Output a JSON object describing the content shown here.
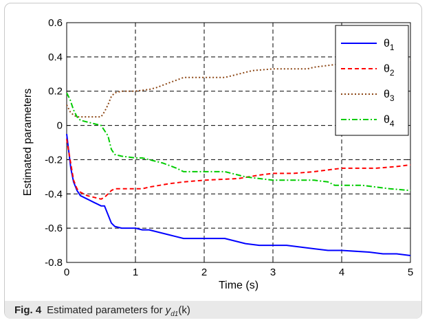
{
  "chart_data": {
    "type": "line",
    "xlabel": "Time (s)",
    "ylabel": "Estimated parameters",
    "xlim": [
      0,
      5
    ],
    "ylim": [
      -0.8,
      0.6
    ],
    "xticks": [
      0,
      1,
      2,
      3,
      4,
      5
    ],
    "yticks": [
      -0.8,
      -0.6,
      -0.4,
      -0.2,
      0,
      0.2,
      0.4,
      0.6
    ],
    "grid": "on",
    "legend_position": "top-right",
    "series": [
      {
        "name": "θ1",
        "color": "#0000ff",
        "style": "solid",
        "x": [
          0,
          0.03,
          0.06,
          0.1,
          0.15,
          0.2,
          0.3,
          0.4,
          0.45,
          0.5,
          0.55,
          0.6,
          0.65,
          0.7,
          0.8,
          1.0,
          1.1,
          1.2,
          1.3,
          1.5,
          1.7,
          1.9,
          2.1,
          2.3,
          2.5,
          2.6,
          2.8,
          3.2,
          3.4,
          3.6,
          3.8,
          4.0,
          4.4,
          4.6,
          4.8,
          5.0
        ],
        "y": [
          -0.05,
          -0.15,
          -0.25,
          -0.33,
          -0.38,
          -0.41,
          -0.43,
          -0.45,
          -0.46,
          -0.47,
          -0.47,
          -0.52,
          -0.57,
          -0.59,
          -0.6,
          -0.6,
          -0.61,
          -0.61,
          -0.62,
          -0.64,
          -0.66,
          -0.66,
          -0.66,
          -0.66,
          -0.68,
          -0.69,
          -0.7,
          -0.7,
          -0.71,
          -0.72,
          -0.73,
          -0.73,
          -0.74,
          -0.75,
          -0.75,
          -0.76
        ]
      },
      {
        "name": "θ2",
        "color": "#ff0000",
        "style": "dashed",
        "x": [
          0,
          0.05,
          0.1,
          0.15,
          0.2,
          0.3,
          0.4,
          0.5,
          0.55,
          0.6,
          0.65,
          0.7,
          1.0,
          1.1,
          1.2,
          1.5,
          1.7,
          2.0,
          2.5,
          2.8,
          3.0,
          3.3,
          3.6,
          3.8,
          4.0,
          4.5,
          4.8,
          5.0
        ],
        "y": [
          -0.08,
          -0.2,
          -0.32,
          -0.37,
          -0.39,
          -0.41,
          -0.42,
          -0.43,
          -0.42,
          -0.4,
          -0.38,
          -0.37,
          -0.37,
          -0.37,
          -0.36,
          -0.34,
          -0.33,
          -0.32,
          -0.31,
          -0.29,
          -0.28,
          -0.28,
          -0.27,
          -0.26,
          -0.25,
          -0.25,
          -0.24,
          -0.23
        ]
      },
      {
        "name": "θ3",
        "color": "#8b4513",
        "style": "dotted",
        "x": [
          0,
          0.05,
          0.1,
          0.15,
          0.2,
          0.3,
          0.4,
          0.5,
          0.55,
          0.6,
          0.65,
          0.7,
          0.8,
          1.0,
          1.2,
          1.3,
          1.5,
          1.7,
          2.0,
          2.3,
          2.5,
          2.7,
          3.0,
          3.3,
          3.5,
          3.6,
          3.8,
          4.0,
          4.3,
          4.6,
          4.8,
          4.9,
          5.0
        ],
        "y": [
          0.12,
          0.08,
          0.06,
          0.05,
          0.05,
          0.05,
          0.05,
          0.05,
          0.08,
          0.12,
          0.17,
          0.19,
          0.2,
          0.2,
          0.21,
          0.22,
          0.25,
          0.28,
          0.28,
          0.28,
          0.3,
          0.32,
          0.33,
          0.33,
          0.33,
          0.34,
          0.35,
          0.36,
          0.36,
          0.37,
          0.37,
          0.38,
          0.38
        ]
      },
      {
        "name": "θ4",
        "color": "#00cc00",
        "style": "dashdot",
        "x": [
          0,
          0.05,
          0.1,
          0.15,
          0.2,
          0.3,
          0.4,
          0.5,
          0.6,
          0.65,
          0.7,
          0.8,
          1.0,
          1.1,
          1.2,
          1.4,
          1.6,
          1.7,
          2.0,
          2.3,
          2.5,
          2.6,
          2.8,
          3.0,
          3.3,
          3.6,
          3.8,
          3.9,
          4.0,
          4.3,
          4.5,
          4.7,
          5.0
        ],
        "y": [
          0.19,
          0.15,
          0.09,
          0.05,
          0.03,
          0.02,
          0.01,
          0.0,
          -0.06,
          -0.14,
          -0.17,
          -0.18,
          -0.19,
          -0.19,
          -0.2,
          -0.22,
          -0.25,
          -0.27,
          -0.27,
          -0.27,
          -0.29,
          -0.3,
          -0.31,
          -0.32,
          -0.32,
          -0.32,
          -0.33,
          -0.35,
          -0.35,
          -0.35,
          -0.36,
          -0.37,
          -0.38
        ]
      }
    ]
  },
  "caption": {
    "label": "Fig. 4",
    "text": "Estimated parameters for",
    "symbol": "y",
    "subscript": "d1",
    "argument": "(k)"
  }
}
